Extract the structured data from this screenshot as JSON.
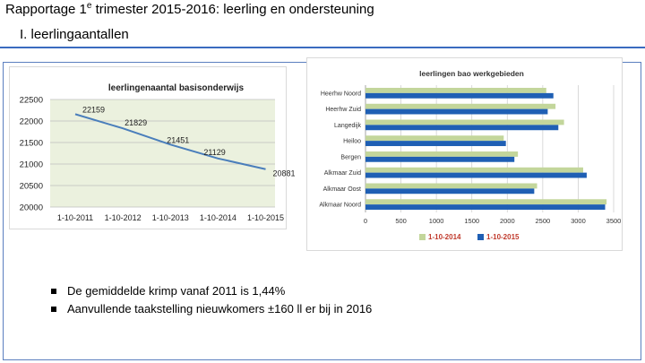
{
  "header": {
    "title_pre": "Rapportage 1",
    "title_sup": "e",
    "title_post": " trimester 2015-2016: leerling en ondersteuning",
    "section": "I. leerlingaantallen"
  },
  "colors": {
    "line": "#4a7ebb",
    "bar2014": "#c3d69b",
    "bar2015": "#1f5fb4",
    "rule": "#3a6bbf",
    "plot_bg": "#ebf1de"
  },
  "chart_data": [
    {
      "type": "line",
      "title": "leerlingenaantal basisonderwijs",
      "categories": [
        "1-10-2011",
        "1-10-2012",
        "1-10-2013",
        "1-10-2014",
        "1-10-2015"
      ],
      "values": [
        22159,
        21829,
        21451,
        21129,
        20881
      ],
      "ylim": [
        20000,
        22500
      ],
      "yticks": [
        "22500",
        "22000",
        "21500",
        "21000",
        "20500",
        "20000"
      ],
      "grid": true
    },
    {
      "type": "bar",
      "orientation": "horizontal",
      "title": "leerlingen bao werkgebieden",
      "categories": [
        "Heerhw Noord",
        "Heerhw Zuid",
        "Langedijk",
        "Heiloo",
        "Bergen",
        "Alkmaar Zuid",
        "Alkmaar Oost",
        "Alkmaar Noord"
      ],
      "series": [
        {
          "name": "1-10-2014",
          "values": [
            2550,
            2680,
            2800,
            1950,
            2150,
            3070,
            2420,
            3400
          ]
        },
        {
          "name": "1-10-2015",
          "values": [
            2650,
            2570,
            2720,
            1980,
            2100,
            3120,
            2380,
            3380
          ]
        }
      ],
      "xlim": [
        0,
        3500
      ],
      "xticks": [
        "0",
        "500",
        "1000",
        "1500",
        "2000",
        "2500",
        "3000",
        "3500"
      ],
      "legend": "bottom"
    }
  ],
  "bullets": [
    "De gemiddelde krimp vanaf 2011 is 1,44%",
    "Aanvullende taakstelling nieuwkomers ±160 ll er bij in 2016"
  ]
}
